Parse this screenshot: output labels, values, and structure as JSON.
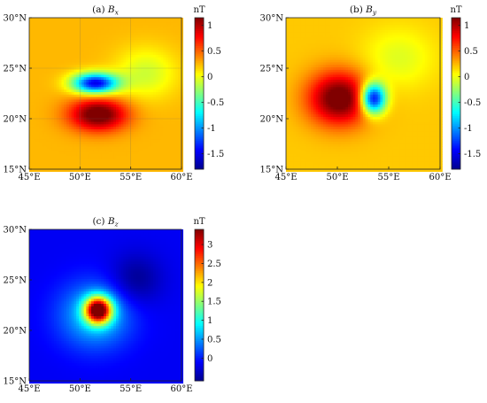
{
  "colors": {
    "jet": [
      "#00008f",
      "#0000ff",
      "#00ffff",
      "#ffff00",
      "#ff0000",
      "#800000"
    ]
  },
  "chart_data": [
    {
      "id": "a",
      "type": "heatmap",
      "title": "(a) ",
      "title_var": "B",
      "title_sub": "x",
      "colorbar_label": "nT",
      "xlim": [
        45,
        60
      ],
      "ylim": [
        15,
        30
      ],
      "x_ticks": [
        45,
        50,
        55,
        60
      ],
      "y_ticks": [
        15,
        20,
        25,
        30
      ],
      "x_tick_labels": [
        "45°E",
        "50°E",
        "55°E",
        "60°E"
      ],
      "y_tick_labels": [
        "15°N",
        "20°N",
        "25°N",
        "30°N"
      ],
      "clim": [
        -1.8,
        1.15
      ],
      "colorbar_ticks": [
        -1.5,
        -1,
        -0.5,
        0,
        0.5,
        1
      ],
      "colorbar_tick_labels": [
        "-1.5",
        "-1",
        "-0.5",
        "0",
        "0.5",
        "1"
      ],
      "background_value": 0.25,
      "features": [
        {
          "lon": 51.8,
          "lat": 20.4,
          "amp": 1.05,
          "sx": 2.8,
          "sy": 1.6
        },
        {
          "lon": 51.5,
          "lat": 23.5,
          "amp": -1.75,
          "sx": 2.2,
          "sy": 1.0
        },
        {
          "lon": 56.5,
          "lat": 24.5,
          "amp": -0.35,
          "sx": 3.0,
          "sy": 2.5
        }
      ],
      "grid": true
    },
    {
      "id": "b",
      "type": "heatmap",
      "title": "(b) ",
      "title_var": "B",
      "title_sub": "y",
      "colorbar_label": "nT",
      "xlim": [
        45,
        60
      ],
      "ylim": [
        15,
        30
      ],
      "x_ticks": [
        45,
        50,
        55,
        60
      ],
      "y_ticks": [
        15,
        20,
        25,
        30
      ],
      "x_tick_labels": [
        "45°E",
        "50°E",
        "55°E",
        "60°E"
      ],
      "y_tick_labels": [
        "15°N",
        "20°N",
        "25°N",
        "30°N"
      ],
      "clim": [
        -1.8,
        1.15
      ],
      "colorbar_ticks": [
        -1.5,
        -1,
        -0.5,
        0,
        0.5,
        1
      ],
      "colorbar_tick_labels": [
        "-1.5",
        "-1",
        "-0.5",
        "0",
        "0.5",
        "1"
      ],
      "background_value": 0.2,
      "features": [
        {
          "lon": 50.2,
          "lat": 22.0,
          "amp": 1.1,
          "sx": 3.0,
          "sy": 2.6
        },
        {
          "lon": 53.5,
          "lat": 22.0,
          "amp": -1.8,
          "sx": 1.2,
          "sy": 1.5
        },
        {
          "lon": 56.0,
          "lat": 26.0,
          "amp": -0.25,
          "sx": 3.5,
          "sy": 3.0
        }
      ],
      "grid": false
    },
    {
      "id": "c",
      "type": "heatmap",
      "title": "(c) ",
      "title_var": "B",
      "title_sub": "z",
      "colorbar_label": "nT",
      "xlim": [
        45,
        60
      ],
      "ylim": [
        15,
        30
      ],
      "x_ticks": [
        45,
        50,
        55,
        60
      ],
      "y_ticks": [
        15,
        20,
        25,
        30
      ],
      "x_tick_labels": [
        "45°E",
        "50°E",
        "55°E",
        "60°E"
      ],
      "y_tick_labels": [
        "15°N",
        "20°N",
        "25°N",
        "30°N"
      ],
      "clim": [
        -0.6,
        3.4
      ],
      "colorbar_ticks": [
        0,
        0.5,
        1,
        1.5,
        2,
        2.5,
        3
      ],
      "colorbar_tick_labels": [
        "0",
        "0.5",
        "1",
        "1.5",
        "2",
        "2.5",
        "3"
      ],
      "background_value": -0.15,
      "features": [
        {
          "lon": 51.8,
          "lat": 22.0,
          "amp": 3.4,
          "sx": 1.3,
          "sy": 1.3
        },
        {
          "lon": 51.5,
          "lat": 21.5,
          "amp": 0.9,
          "sx": 3.5,
          "sy": 3.2
        },
        {
          "lon": 55.5,
          "lat": 25.0,
          "amp": -0.45,
          "sx": 2.5,
          "sy": 2.5
        }
      ],
      "grid": false
    }
  ]
}
